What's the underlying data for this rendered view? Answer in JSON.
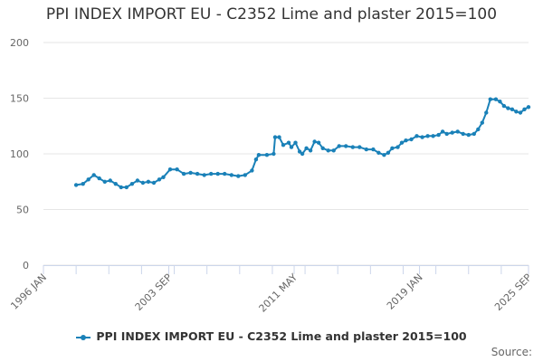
{
  "title": "PPI INDEX IMPORT EU - C2352 Lime and plaster 2015=100",
  "credits": "Source:",
  "colors": {
    "series": "#1a81b8",
    "grid": "#e6e6e6",
    "axis": "#ccd6eb",
    "text": "#666666"
  },
  "chart_data": {
    "type": "line",
    "title": "PPI INDEX IMPORT EU - C2352 Lime and plaster 2015=100",
    "xlabel": "",
    "ylabel": "",
    "ylim": [
      0,
      200
    ],
    "yticks": [
      "0",
      "50",
      "100",
      "150",
      "200"
    ],
    "xticks": [
      "1996 JAN",
      "2003 SEP",
      "2011 MAY",
      "2019 JAN",
      "2025 SEP"
    ],
    "grid": true,
    "legend": "bottom-center",
    "series": [
      {
        "name": "PPI INDEX IMPORT EU - C2352 Lime and plaster 2015=100",
        "points": [
          [
            "1998-01",
            72
          ],
          [
            "1998-06",
            73
          ],
          [
            "1998-10",
            77
          ],
          [
            "1999-02",
            81
          ],
          [
            "1999-06",
            78
          ],
          [
            "1999-10",
            75
          ],
          [
            "2000-02",
            76
          ],
          [
            "2000-06",
            73
          ],
          [
            "2000-10",
            70
          ],
          [
            "2001-02",
            70
          ],
          [
            "2001-06",
            73
          ],
          [
            "2001-10",
            76
          ],
          [
            "2002-02",
            74
          ],
          [
            "2002-06",
            75
          ],
          [
            "2002-10",
            74
          ],
          [
            "2003-02",
            77
          ],
          [
            "2003-05",
            79
          ],
          [
            "2003-10",
            86
          ],
          [
            "2004-03",
            86
          ],
          [
            "2004-08",
            82
          ],
          [
            "2005-01",
            83
          ],
          [
            "2005-06",
            82
          ],
          [
            "2005-11",
            81
          ],
          [
            "2006-04",
            82
          ],
          [
            "2006-09",
            82
          ],
          [
            "2007-02",
            82
          ],
          [
            "2007-07",
            81
          ],
          [
            "2007-12",
            80
          ],
          [
            "2008-05",
            81
          ],
          [
            "2008-10",
            85
          ],
          [
            "2009-01",
            95
          ],
          [
            "2009-03",
            99
          ],
          [
            "2009-09",
            99
          ],
          [
            "2010-02",
            100
          ],
          [
            "2010-03",
            115
          ],
          [
            "2010-06",
            115
          ],
          [
            "2010-09",
            108
          ],
          [
            "2011-01",
            110
          ],
          [
            "2011-03",
            106
          ],
          [
            "2011-06",
            110
          ],
          [
            "2011-09",
            102
          ],
          [
            "2011-11",
            100
          ],
          [
            "2012-02",
            105
          ],
          [
            "2012-05",
            103
          ],
          [
            "2012-08",
            111
          ],
          [
            "2012-11",
            110
          ],
          [
            "2013-02",
            105
          ],
          [
            "2013-06",
            103
          ],
          [
            "2013-10",
            103
          ],
          [
            "2014-02",
            107
          ],
          [
            "2014-07",
            107
          ],
          [
            "2014-12",
            106
          ],
          [
            "2015-05",
            106
          ],
          [
            "2015-10",
            104
          ],
          [
            "2016-03",
            104
          ],
          [
            "2016-07",
            101
          ],
          [
            "2016-11",
            99
          ],
          [
            "2017-02",
            101
          ],
          [
            "2017-05",
            105
          ],
          [
            "2017-09",
            106
          ],
          [
            "2017-12",
            110
          ],
          [
            "2018-03",
            112
          ],
          [
            "2018-07",
            113
          ],
          [
            "2018-11",
            116
          ],
          [
            "2019-03",
            115
          ],
          [
            "2019-07",
            116
          ],
          [
            "2019-11",
            116
          ],
          [
            "2020-03",
            117
          ],
          [
            "2020-06",
            120
          ],
          [
            "2020-09",
            118
          ],
          [
            "2021-01",
            119
          ],
          [
            "2021-05",
            120
          ],
          [
            "2021-09",
            118
          ],
          [
            "2022-01",
            117
          ],
          [
            "2022-05",
            118
          ],
          [
            "2022-08",
            122
          ],
          [
            "2022-11",
            128
          ],
          [
            "2023-02",
            137
          ],
          [
            "2023-05",
            149
          ],
          [
            "2023-09",
            149
          ],
          [
            "2023-12",
            147
          ],
          [
            "2024-03",
            143
          ],
          [
            "2024-06",
            141
          ],
          [
            "2024-09",
            140
          ],
          [
            "2024-12",
            138
          ],
          [
            "2025-03",
            137
          ],
          [
            "2025-06",
            140
          ],
          [
            "2025-09",
            142
          ]
        ]
      }
    ]
  }
}
